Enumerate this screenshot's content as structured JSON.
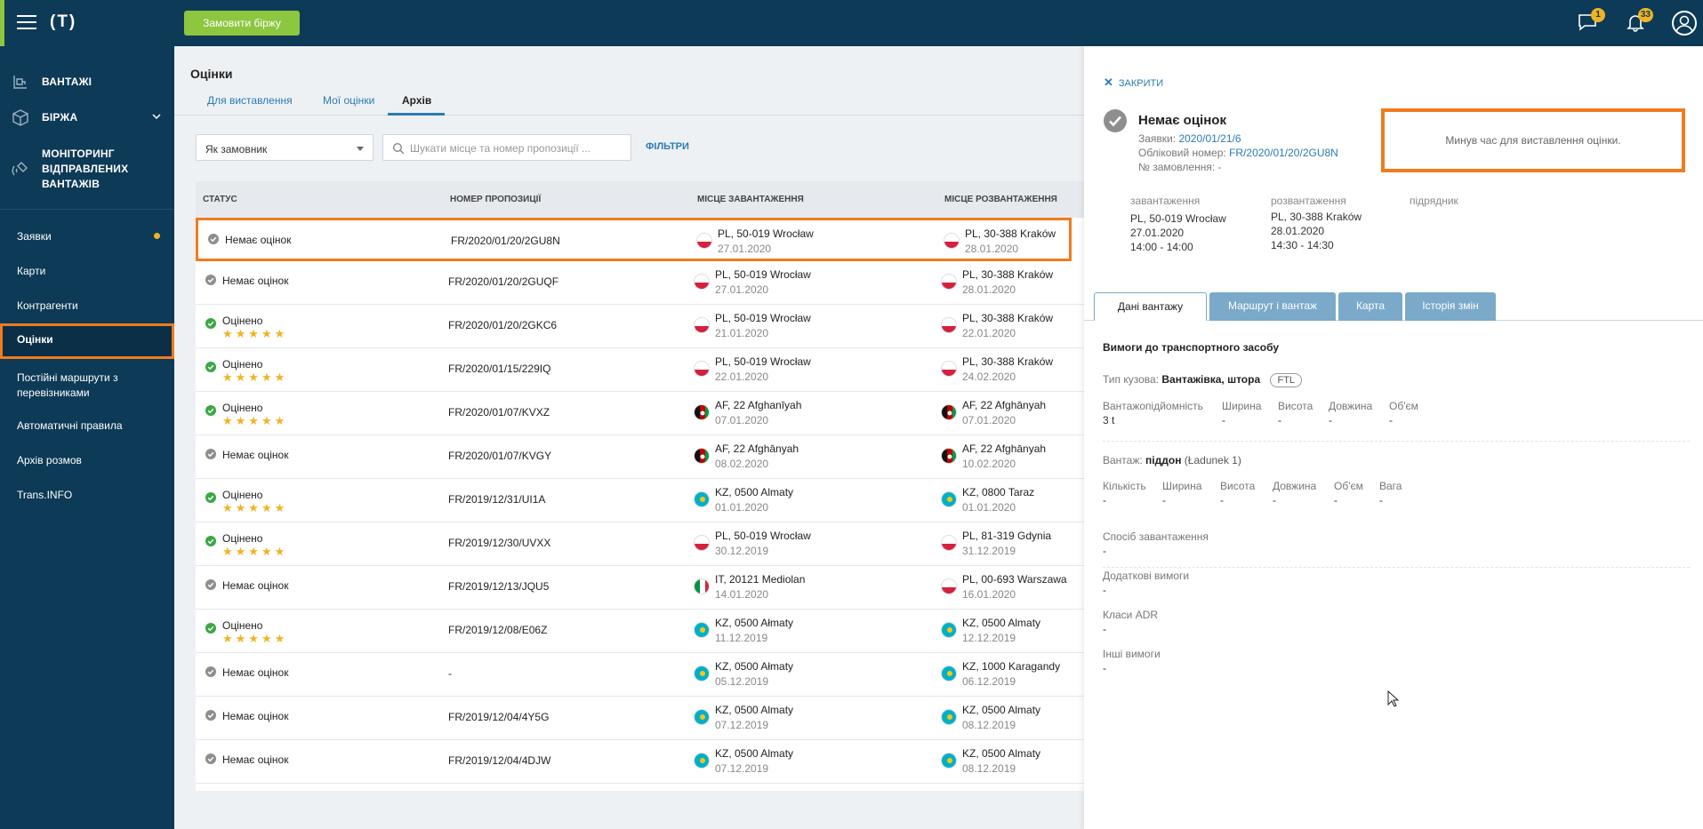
{
  "header": {
    "logo": "(T)",
    "order_button": "Замовити біржу",
    "messages_count": "1",
    "notifications_count": "33"
  },
  "sidebar": {
    "main": [
      {
        "label": "ВАНТАЖІ",
        "icon": "cargo-icon"
      },
      {
        "label": "БІРЖА",
        "icon": "box-icon"
      },
      {
        "label": "МОНІТОРИНГ ВІДПРАВЛЕНИХ ВАНТАЖІВ",
        "icon": "satellite-icon"
      }
    ],
    "items": [
      {
        "label": "Заявки"
      },
      {
        "label": "Карти"
      },
      {
        "label": "Контрагенти"
      },
      {
        "label": "Оцінки"
      },
      {
        "label": "Постійні маршрути з перевізниками"
      },
      {
        "label": "Автоматичні правила"
      },
      {
        "label": "Архів розмов"
      },
      {
        "label": "Trans.INFO"
      }
    ]
  },
  "main": {
    "title": "Оцінки",
    "tabs": [
      "Для виставлення",
      "Мої оцінки",
      "Архів"
    ],
    "active_tab": "Архів",
    "select_value": "Як замовник",
    "search_placeholder": "Шукати місце та номер пропозиції ...",
    "filters_label": "ФІЛЬТРИ",
    "columns": [
      "Статус",
      "Номер пропозиції",
      "Місце завантаження",
      "Місце розвантаження"
    ],
    "rows": [
      {
        "status": "Немає оцінок",
        "rated": false,
        "number": "FR/2020/01/20/2GU8N",
        "load_city": "PL, 50-019 Wrocław",
        "load_date": "27.01.2020",
        "load_flag": "pl",
        "unload_city": "PL, 30-388 Kraków",
        "unload_date": "28.01.2020",
        "unload_flag": "pl"
      },
      {
        "status": "Немає оцінок",
        "rated": false,
        "number": "FR/2020/01/20/2GUQF",
        "load_city": "PL, 50-019 Wrocław",
        "load_date": "27.01.2020",
        "load_flag": "pl",
        "unload_city": "PL, 30-388 Kraków",
        "unload_date": "28.01.2020",
        "unload_flag": "pl"
      },
      {
        "status": "Оцінено",
        "rated": true,
        "stars": "★★★★★",
        "number": "FR/2020/01/20/2GKC6",
        "load_city": "PL, 50-019 Wrocław",
        "load_date": "21.01.2020",
        "load_flag": "pl",
        "unload_city": "PL, 30-388 Kraków",
        "unload_date": "22.01.2020",
        "unload_flag": "pl"
      },
      {
        "status": "Оцінено",
        "rated": true,
        "stars": "★★★★★",
        "number": "FR/2020/01/15/229IQ",
        "load_city": "PL, 50-019 Wrocław",
        "load_date": "22.01.2020",
        "load_flag": "pl",
        "unload_city": "PL, 30-388 Kraków",
        "unload_date": "24.02.2020",
        "unload_flag": "pl"
      },
      {
        "status": "Оцінено",
        "rated": true,
        "stars": "★★★★★",
        "number": "FR/2020/01/07/KVXZ",
        "load_city": "AF, 22 Afghanīyah",
        "load_date": "07.01.2020",
        "load_flag": "af",
        "unload_city": "AF, 22 Afghānyah",
        "unload_date": "07.01.2020",
        "unload_flag": "af"
      },
      {
        "status": "Немає оцінок",
        "rated": false,
        "number": "FR/2020/01/07/KVGY",
        "load_city": "AF, 22 Afghānyah",
        "load_date": "08.02.2020",
        "load_flag": "af",
        "unload_city": "AF, 22 Afghānyah",
        "unload_date": "10.02.2020",
        "unload_flag": "af"
      },
      {
        "status": "Оцінено",
        "rated": true,
        "stars": "★★★★★",
        "number": "FR/2019/12/31/UI1A",
        "load_city": "KZ, 0500 Almaty",
        "load_date": "01.01.2020",
        "load_flag": "kz",
        "unload_city": "KZ, 0800 Taraz",
        "unload_date": "01.01.2020",
        "unload_flag": "kz"
      },
      {
        "status": "Оцінено",
        "rated": true,
        "stars": "★★★★★",
        "number": "FR/2019/12/30/UVXX",
        "load_city": "PL, 50-019 Wrocław",
        "load_date": "30.12.2019",
        "load_flag": "pl",
        "unload_city": "PL, 81-319 Gdynia",
        "unload_date": "31.12.2019",
        "unload_flag": "pl"
      },
      {
        "status": "Немає оцінок",
        "rated": false,
        "number": "FR/2019/12/13/JQU5",
        "load_city": "IT, 20121 Mediolan",
        "load_date": "14.01.2020",
        "load_flag": "it",
        "unload_city": "PL, 00-693 Warszawa",
        "unload_date": "16.01.2020",
        "unload_flag": "pl"
      },
      {
        "status": "Оцінено",
        "rated": true,
        "stars": "★★★★★",
        "number": "FR/2019/12/08/E06Z",
        "load_city": "KZ, 0500 Ałmaty",
        "load_date": "11.12.2019",
        "load_flag": "kz",
        "unload_city": "KZ, 0500 Almaty",
        "unload_date": "12.12.2019",
        "unload_flag": "kz"
      },
      {
        "status": "Немає оцінок",
        "rated": false,
        "number": "-",
        "load_city": "KZ, 0500 Ałmaty",
        "load_date": "05.12.2019",
        "load_flag": "kz",
        "unload_city": "KZ, 1000 Karagandy",
        "unload_date": "06.12.2019",
        "unload_flag": "kz"
      },
      {
        "status": "Немає оцінок",
        "rated": false,
        "number": "FR/2019/12/04/4Y5G",
        "load_city": "KZ, 0500 Almaty",
        "load_date": "07.12.2019",
        "load_flag": "kz",
        "unload_city": "KZ, 0500 Almaty",
        "unload_date": "08.12.2019",
        "unload_flag": "kz"
      },
      {
        "status": "Немає оцінок",
        "rated": false,
        "number": "FR/2019/12/04/4DJW",
        "load_city": "KZ, 0500 Almaty",
        "load_date": "07.12.2019",
        "load_flag": "kz",
        "unload_city": "KZ, 0500 Almaty",
        "unload_date": "08.12.2019",
        "unload_flag": "kz"
      }
    ]
  },
  "panel": {
    "close_label": "ЗАКРИТИ",
    "title": "Немає оцінок",
    "request_label": "Заявки:",
    "request_value": "2020/01/21/6",
    "account_label": "Обліковий номер:",
    "account_value": "FR/2020/01/20/2GU8N",
    "order_label": "№ замовлення:",
    "order_value": "-",
    "notice": "Минув час для виставлення оцінки.",
    "loading_label": "завантаження",
    "loading_place": "PL, 50-019 Wrocław",
    "loading_date": "27.01.2020",
    "loading_time": "14:00 - 14:00",
    "unloading_label": "розвантаження",
    "unloading_place": "PL, 30-388 Kraków",
    "unloading_date": "28.01.2020",
    "unloading_time": "14:30 - 14:30",
    "contractor_label": "підрядник",
    "tabs": [
      "Дані вантажу",
      "Маршрут і вантаж",
      "Карта",
      "Історія змін"
    ],
    "section_title": "Вимоги до транспортного засобу",
    "body_type_label": "Тип кузова:",
    "body_type_value": "Вантажівка, штора",
    "ftl_badge": "FTL",
    "vehicle_cols": [
      {
        "label": "Вантажопідйомність",
        "value": "3 t"
      },
      {
        "label": "Ширина",
        "value": "-"
      },
      {
        "label": "Висота",
        "value": "-"
      },
      {
        "label": "Довжина",
        "value": "-"
      },
      {
        "label": "Об'єм",
        "value": "-"
      }
    ],
    "cargo_label": "Вантаж:",
    "cargo_value": "піддон",
    "cargo_extra": "(Ładunek 1)",
    "cargo_cols": [
      {
        "label": "Кількість",
        "value": "-"
      },
      {
        "label": "Ширина",
        "value": "-"
      },
      {
        "label": "Висота",
        "value": "-"
      },
      {
        "label": "Довжина",
        "value": "-"
      },
      {
        "label": "Об'єм",
        "value": "-"
      },
      {
        "label": "Вага",
        "value": "-"
      }
    ],
    "extra": [
      {
        "label": "Спосіб завантаження",
        "value": "-"
      },
      {
        "label": "Додаткові вимоги",
        "value": "-"
      },
      {
        "label": "Класи ADR",
        "value": "-"
      },
      {
        "label": "Інші вимоги",
        "value": "-"
      }
    ]
  },
  "colors": {
    "navy": "#0d3a57",
    "green": "#8dc63f",
    "orange_highlight": "#f07c1e",
    "link_blue": "#2a7bb5",
    "star": "#f0b323"
  }
}
